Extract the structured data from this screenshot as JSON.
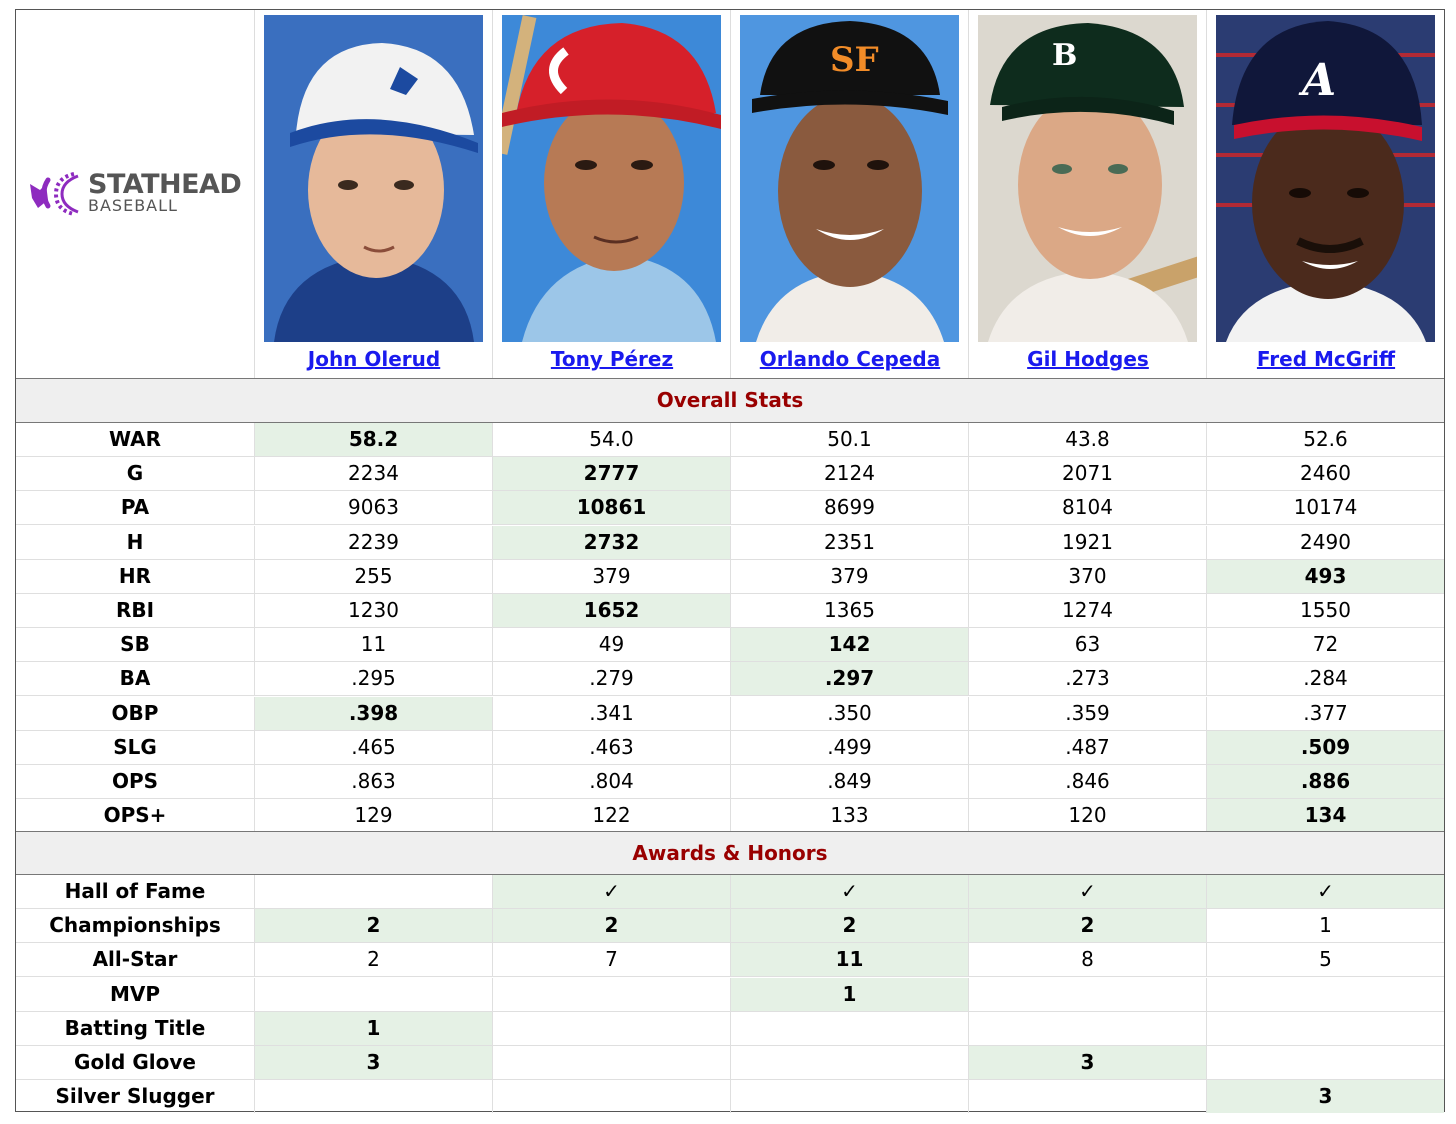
{
  "brand": {
    "line1": "STATHEAD",
    "line2": "BASEBALL",
    "logo_color": "#8e2bbf",
    "text_color": "#555555"
  },
  "players": [
    {
      "name": "John Olerud",
      "cap": "#f2f2f2",
      "cap_bill": "#1c4aa0",
      "skin": "#e6b99a",
      "bg": "#3a6fbf",
      "shirt": "#1d3f88"
    },
    {
      "name": "Tony Pérez",
      "cap": "#d6202a",
      "cap_bill": "#c11c25",
      "skin": "#b77a55",
      "bg": "#3d89d8",
      "shirt": "#9cc6e8"
    },
    {
      "name": "Orlando Cepeda",
      "cap": "#111111",
      "cap_bill": "#111111",
      "skin": "#8a5a3e",
      "bg": "#4f96e0",
      "shirt": "#f1ede8"
    },
    {
      "name": "Gil Hodges",
      "cap": "#0e2c1d",
      "cap_bill": "#0c2418",
      "skin": "#dba886",
      "bg": "#dcd8cf",
      "shirt": "#f1ede8"
    },
    {
      "name": "Fred McGriff",
      "cap": "#10173a",
      "cap_bill": "#c8102e",
      "skin": "#4b2a1c",
      "bg": "#2b3c72",
      "shirt": "#f2f2f2"
    }
  ],
  "sections": {
    "overall": "Overall Stats",
    "awards": "Awards & Honors"
  },
  "colors": {
    "best_bg": "#e5f1e5",
    "section_title": "#990000",
    "link": "#1a1aee"
  },
  "overall_rows": [
    {
      "label": "WAR",
      "values": [
        "58.2",
        "54.0",
        "50.1",
        "43.8",
        "52.6"
      ],
      "best": [
        0
      ]
    },
    {
      "label": "G",
      "values": [
        "2234",
        "2777",
        "2124",
        "2071",
        "2460"
      ],
      "best": [
        1
      ]
    },
    {
      "label": "PA",
      "values": [
        "9063",
        "10861",
        "8699",
        "8104",
        "10174"
      ],
      "best": [
        1
      ]
    },
    {
      "label": "H",
      "values": [
        "2239",
        "2732",
        "2351",
        "1921",
        "2490"
      ],
      "best": [
        1
      ]
    },
    {
      "label": "HR",
      "values": [
        "255",
        "379",
        "379",
        "370",
        "493"
      ],
      "best": [
        4
      ]
    },
    {
      "label": "RBI",
      "values": [
        "1230",
        "1652",
        "1365",
        "1274",
        "1550"
      ],
      "best": [
        1
      ]
    },
    {
      "label": "SB",
      "values": [
        "11",
        "49",
        "142",
        "63",
        "72"
      ],
      "best": [
        2
      ]
    },
    {
      "label": "BA",
      "values": [
        ".295",
        ".279",
        ".297",
        ".273",
        ".284"
      ],
      "best": [
        2
      ]
    },
    {
      "label": "OBP",
      "values": [
        ".398",
        ".341",
        ".350",
        ".359",
        ".377"
      ],
      "best": [
        0
      ]
    },
    {
      "label": "SLG",
      "values": [
        ".465",
        ".463",
        ".499",
        ".487",
        ".509"
      ],
      "best": [
        4
      ]
    },
    {
      "label": "OPS",
      "values": [
        ".863",
        ".804",
        ".849",
        ".846",
        ".886"
      ],
      "best": [
        4
      ]
    },
    {
      "label": "OPS+",
      "values": [
        "129",
        "122",
        "133",
        "120",
        "134"
      ],
      "best": [
        4
      ]
    }
  ],
  "award_rows": [
    {
      "label": "Hall of Fame",
      "values": [
        "",
        "✓",
        "✓",
        "✓",
        "✓"
      ],
      "best": [
        1,
        2,
        3,
        4
      ]
    },
    {
      "label": "Championships",
      "values": [
        "2",
        "2",
        "2",
        "2",
        "1"
      ],
      "best": [
        0,
        1,
        2,
        3
      ]
    },
    {
      "label": "All-Star",
      "values": [
        "2",
        "7",
        "11",
        "8",
        "5"
      ],
      "best": [
        2
      ]
    },
    {
      "label": "MVP",
      "values": [
        "",
        "",
        "1",
        "",
        ""
      ],
      "best": [
        2
      ]
    },
    {
      "label": "Batting Title",
      "values": [
        "1",
        "",
        "",
        "",
        ""
      ],
      "best": [
        0
      ]
    },
    {
      "label": "Gold Glove",
      "values": [
        "3",
        "",
        "",
        "3",
        ""
      ],
      "best": [
        0,
        3
      ]
    },
    {
      "label": "Silver Slugger",
      "values": [
        "",
        "",
        "",
        "",
        "3"
      ],
      "best": [
        4
      ]
    }
  ]
}
